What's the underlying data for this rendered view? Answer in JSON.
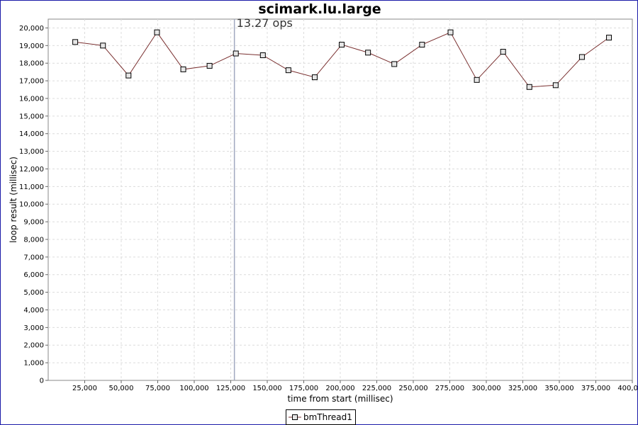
{
  "chart_data": {
    "type": "line",
    "title": "scimark.lu.large",
    "xlabel": "time from start (millisec)",
    "ylabel": "loop result (millisec)",
    "xlim": [
      0,
      400000
    ],
    "ylim": [
      0,
      20500
    ],
    "xticks": [
      25000,
      50000,
      75000,
      100000,
      125000,
      150000,
      175000,
      200000,
      225000,
      250000,
      275000,
      300000,
      325000,
      350000,
      375000,
      400000
    ],
    "xtick_labels": [
      "25,000",
      "50,000",
      "75,000",
      "100,000",
      "125,000",
      "150,000",
      "175,000",
      "200,000",
      "225,000",
      "250,000",
      "275,000",
      "300,000",
      "325,000",
      "350,000",
      "375,000",
      "400,000"
    ],
    "yticks": [
      0,
      1000,
      2000,
      3000,
      4000,
      5000,
      6000,
      7000,
      8000,
      9000,
      10000,
      11000,
      12000,
      13000,
      14000,
      15000,
      16000,
      17000,
      18000,
      19000,
      20000
    ],
    "ytick_labels": [
      "0",
      "1,000",
      "2,000",
      "3,000",
      "4,000",
      "5,000",
      "6,000",
      "7,000",
      "8,000",
      "9,000",
      "10,000",
      "11,000",
      "12,000",
      "13,000",
      "14,000",
      "15,000",
      "16,000",
      "17,000",
      "18,000",
      "19,000",
      "20,000"
    ],
    "grid": true,
    "legend_position": "bottom",
    "series": [
      {
        "name": "bmThread1",
        "color": "#7a3030",
        "x": [
          18500,
          37500,
          55000,
          74500,
          92500,
          110500,
          128500,
          147000,
          164500,
          182500,
          201000,
          219000,
          237000,
          256000,
          275500,
          293500,
          311500,
          329500,
          347500,
          365500,
          384000
        ],
        "y": [
          19200,
          19000,
          17300,
          19750,
          17650,
          17850,
          18550,
          18450,
          17600,
          17200,
          19050,
          18600,
          17950,
          19050,
          19750,
          17050,
          18650,
          16650,
          16750,
          18350,
          19450
        ]
      }
    ],
    "annotations": [
      {
        "type": "vline",
        "x": 127500,
        "label": "13.27 ops",
        "color": "#a0a8c0"
      }
    ]
  }
}
